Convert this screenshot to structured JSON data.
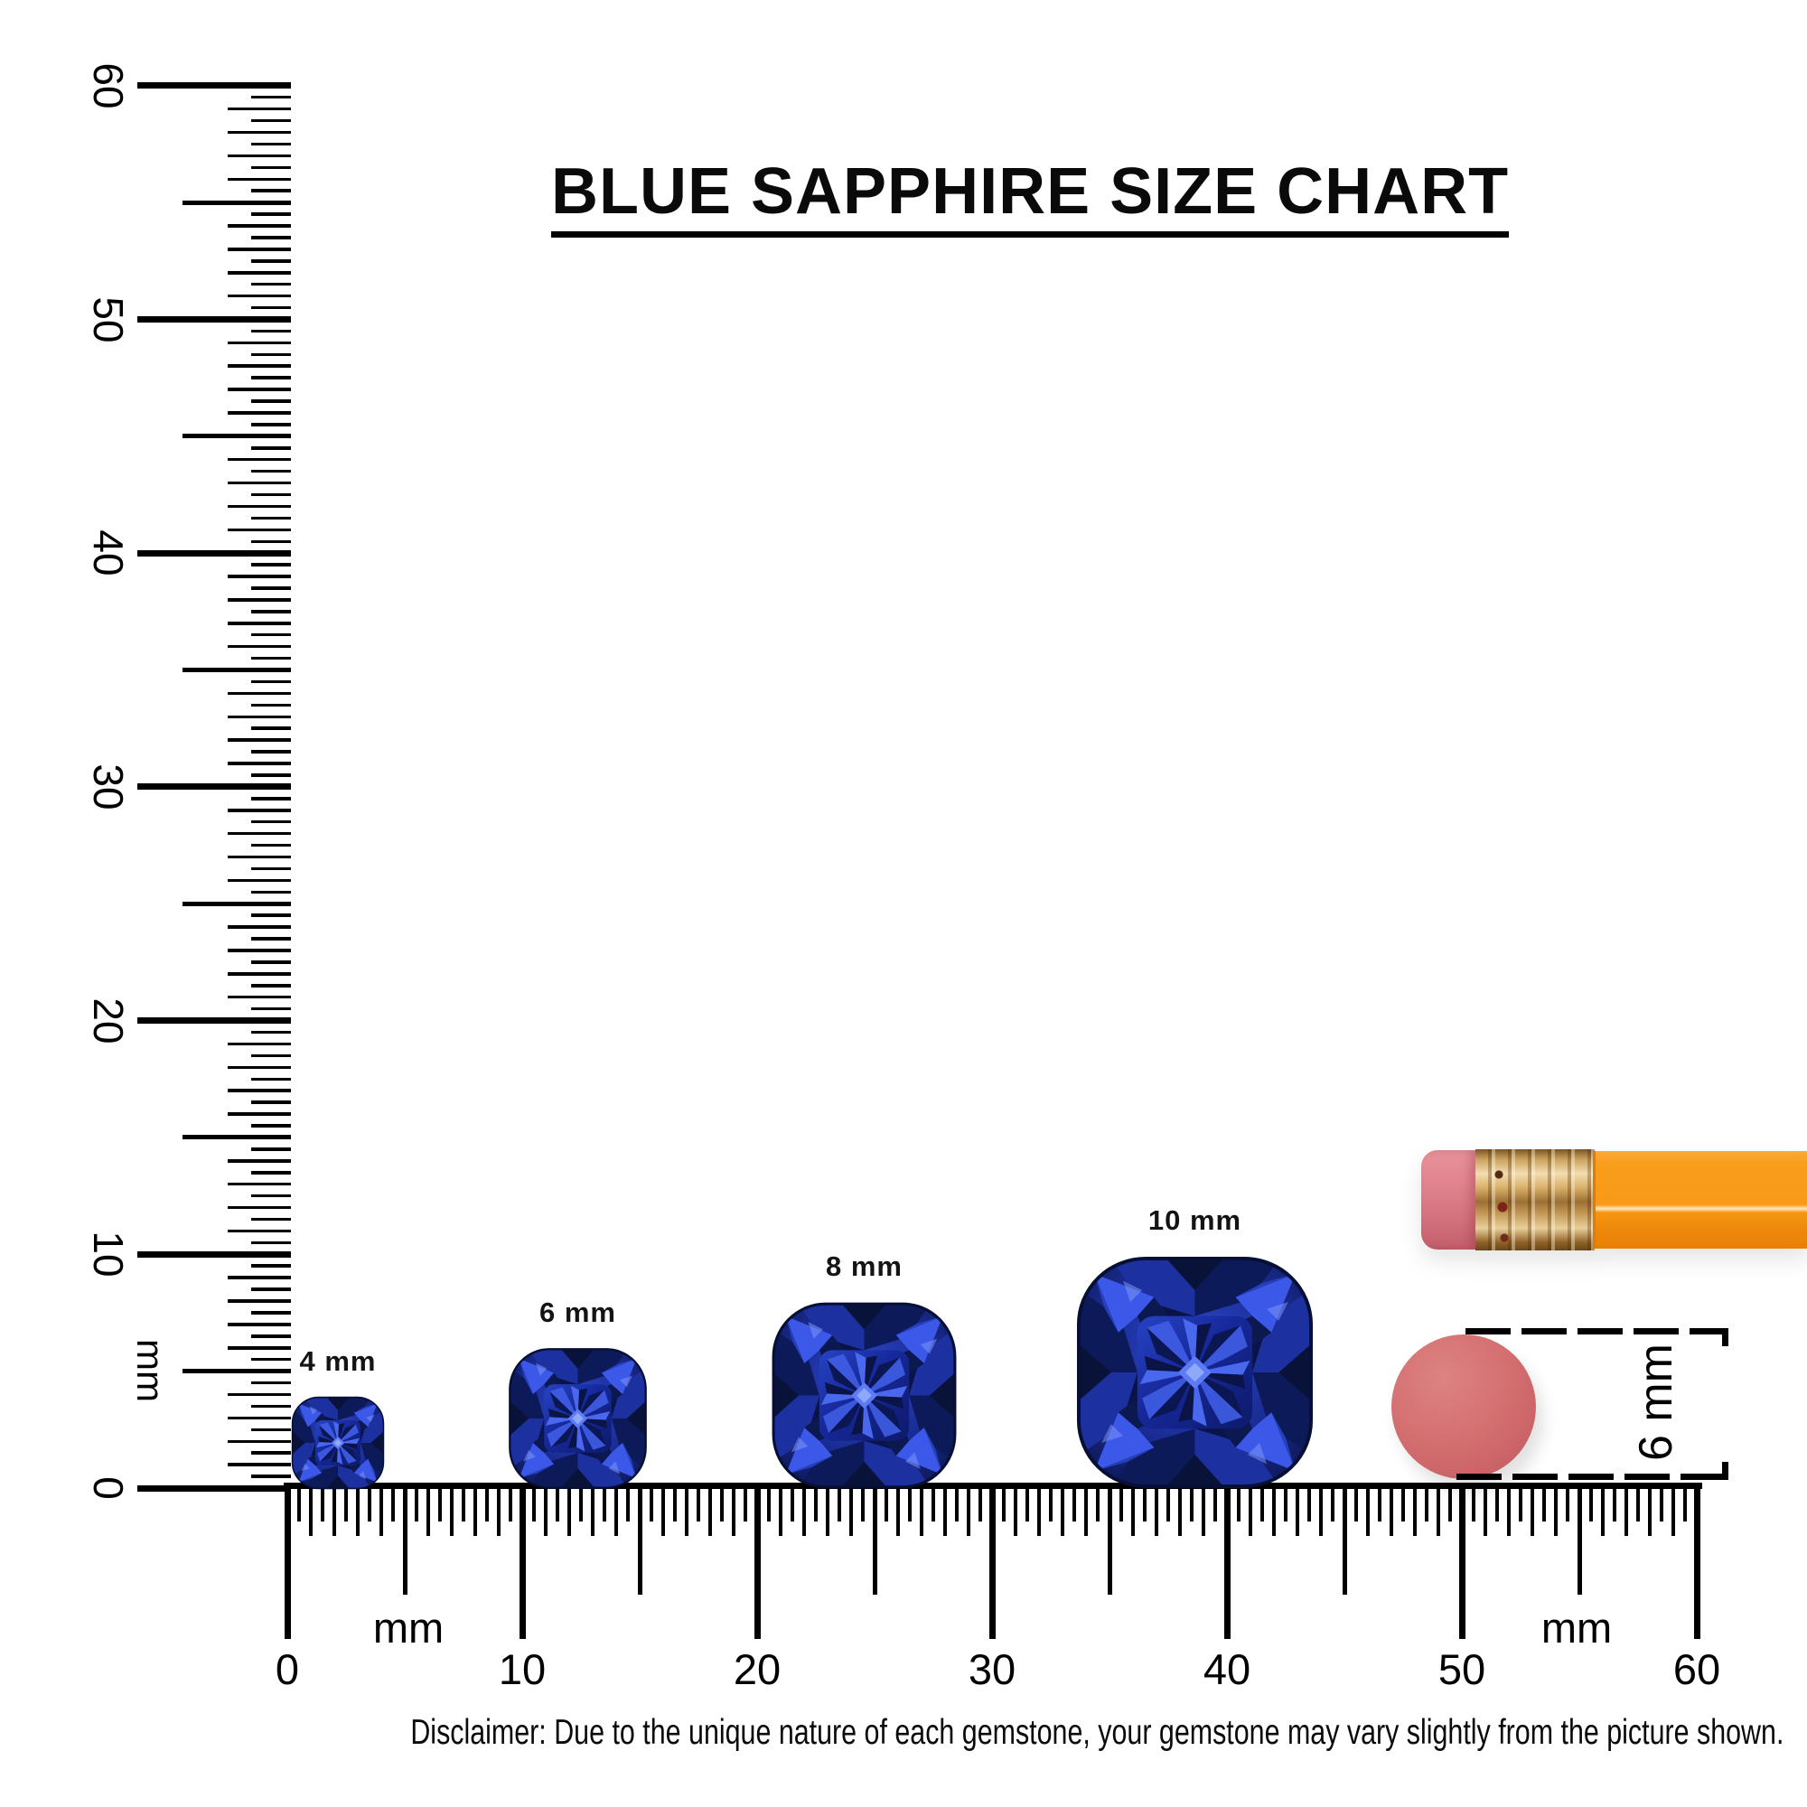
{
  "title": "BLUE SAPPHIRE SIZE CHART",
  "disclaimer": "Disclaimer: Due to the unique nature of each gemstone, your gemstone may vary slightly from the picture shown.",
  "rulers": {
    "unit": "mm",
    "tick_labels": [
      "0",
      "10",
      "20",
      "30",
      "40",
      "50",
      "60"
    ],
    "tick_values_mm": [
      0,
      10,
      20,
      30,
      40,
      50,
      60
    ],
    "minor_step_mm": 0.5,
    "range_mm": [
      0,
      60
    ]
  },
  "gems": [
    {
      "label": "4 mm",
      "size_mm": 4
    },
    {
      "label": "6 mm",
      "size_mm": 6
    },
    {
      "label": "8 mm",
      "size_mm": 8
    },
    {
      "label": "10 mm",
      "size_mm": 10
    }
  ],
  "comparison": {
    "eraser_size_label": "6 mm",
    "objects": [
      "pencil",
      "round-eraser"
    ]
  },
  "chart_data": {
    "type": "table",
    "title": "BLUE SAPPHIRE SIZE CHART",
    "categories": [
      "4 mm",
      "6 mm",
      "8 mm",
      "10 mm"
    ],
    "values": [
      4,
      6,
      8,
      10
    ],
    "unit": "mm",
    "xlabel": "mm",
    "ylabel": "mm",
    "axis_range_mm": [
      0,
      60
    ],
    "reference_objects": [
      {
        "name": "pencil round eraser",
        "size_mm": 6
      }
    ],
    "legend": "off",
    "grid": "off"
  },
  "colors": {
    "sapphire_dark": "#0a1345",
    "sapphire_mid": "#1b2f9e",
    "sapphire_bright": "#3b5ae8",
    "pencil_body": "#f79413",
    "pencil_ferrule": "#c89a55",
    "pencil_eraser_tip": "#d97983",
    "round_eraser": "#d46f70",
    "ink": "#000000",
    "background": "#ffffff"
  }
}
